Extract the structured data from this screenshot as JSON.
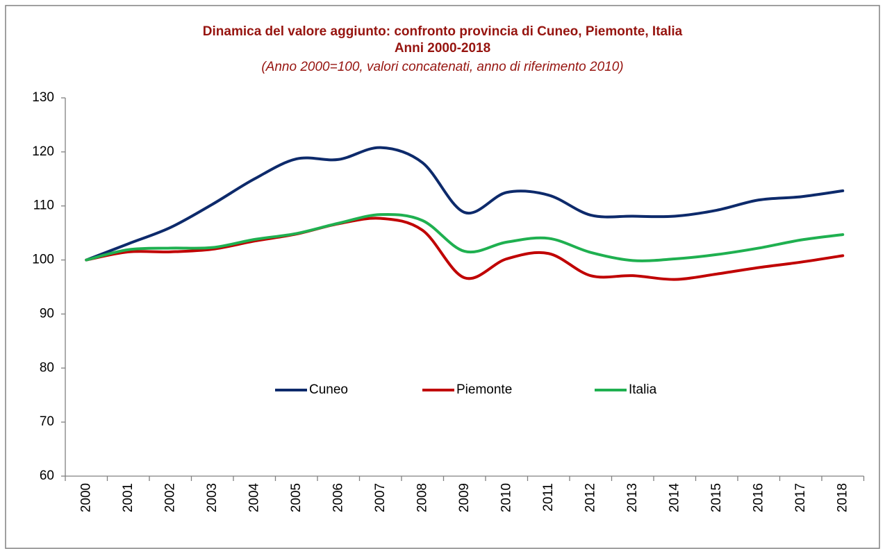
{
  "chart_data": {
    "type": "line",
    "title": "Dinamica del valore aggiunto: confronto provincia di Cuneo, Piemonte, Italia",
    "subtitle": "Anni 2000-2018",
    "note": "(Anno 2000=100, valori concatenati, anno di riferimento 2010)",
    "categories": [
      "2000",
      "2001",
      "2002",
      "2003",
      "2004",
      "2005",
      "2006",
      "2007",
      "2008",
      "2009",
      "2010",
      "2011",
      "2012",
      "2013",
      "2014",
      "2015",
      "2016",
      "2017",
      "2018"
    ],
    "series": [
      {
        "name": "Cuneo",
        "color": "#0d2a6b",
        "values": [
          100,
          103,
          106,
          110.3,
          115,
          118.7,
          118.6,
          120.8,
          118,
          108.8,
          112.5,
          112,
          108.3,
          108.1,
          108.1,
          109.2,
          111.1,
          111.7,
          112.8
        ]
      },
      {
        "name": "Piemonte",
        "color": "#c00000",
        "values": [
          100,
          101.5,
          101.5,
          102,
          103.5,
          104.8,
          106.7,
          107.7,
          105.5,
          96.7,
          100.2,
          101.2,
          97.1,
          97.1,
          96.4,
          97.4,
          98.6,
          99.6,
          100.8
        ]
      },
      {
        "name": "Italia",
        "color": "#1fb050",
        "values": [
          100,
          101.9,
          102.2,
          102.3,
          103.8,
          104.9,
          106.8,
          108.4,
          107.3,
          101.6,
          103.3,
          104,
          101.4,
          99.9,
          100.2,
          101,
          102.2,
          103.7,
          104.7
        ]
      }
    ],
    "ylim": [
      60,
      130
    ],
    "yticks": [
      60,
      70,
      80,
      90,
      100,
      110,
      120,
      130
    ],
    "grid": false,
    "legend": "inside"
  }
}
